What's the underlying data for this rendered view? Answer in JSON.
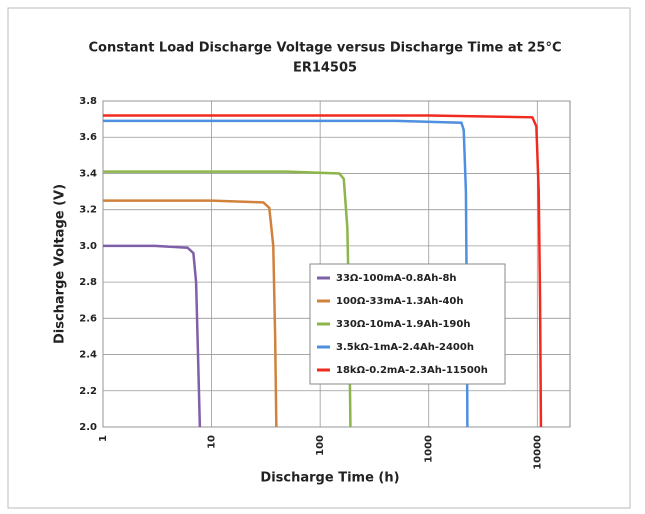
{
  "chart_data": {
    "type": "line",
    "title": "Constant Load Discharge Voltage versus Discharge Time at 25°C",
    "subtitle": "ER14505",
    "x_label": "Discharge  Time (h)",
    "y_label": "Discharge Voltage (V)",
    "xscale": "log",
    "xlim": [
      1,
      20000
    ],
    "xticks": [
      1,
      10,
      100,
      1000,
      10000
    ],
    "ylim": [
      2.0,
      3.8
    ],
    "yticks": [
      {
        "value": 2.0,
        "label": "2.0"
      },
      {
        "value": 2.2,
        "label": "2.2"
      },
      {
        "value": 2.4,
        "label": "2.4"
      },
      {
        "value": 2.6,
        "label": "2.6"
      },
      {
        "value": 2.8,
        "label": "2.8"
      },
      {
        "value": 3.0,
        "label": "3.0"
      },
      {
        "value": 3.2,
        "label": "3.2"
      },
      {
        "value": 3.4,
        "label": "3.4"
      },
      {
        "value": 3.6,
        "label": "3.6"
      },
      {
        "value": 3.8,
        "label": "3.8"
      }
    ],
    "grid": true,
    "legend": "center right",
    "series": [
      {
        "name": "33Ω-100mA-0.8Ah-8h",
        "color": "#7f5fa8",
        "x": [
          1,
          3,
          6,
          6.8,
          7.2,
          7.5,
          7.8
        ],
        "values": [
          3.0,
          3.0,
          2.99,
          2.96,
          2.8,
          2.4,
          2.0
        ]
      },
      {
        "name": "100Ω-33mA-1.3Ah-40h",
        "color": "#d0813b",
        "x": [
          1,
          10,
          30,
          34,
          37,
          38.5,
          39.5
        ],
        "values": [
          3.25,
          3.25,
          3.24,
          3.21,
          3.0,
          2.5,
          2.0
        ]
      },
      {
        "name": "330Ω-10mA-1.9Ah-190h",
        "color": "#8db54a",
        "x": [
          1,
          50,
          150,
          165,
          178,
          185,
          190
        ],
        "values": [
          3.41,
          3.41,
          3.4,
          3.37,
          3.1,
          2.6,
          2.0
        ]
      },
      {
        "name": "3.5kΩ-1mA-2.4Ah-2400h",
        "color": "#4f8fe0",
        "x": [
          1,
          500,
          2000,
          2100,
          2200,
          2240,
          2270
        ],
        "values": [
          3.69,
          3.69,
          3.68,
          3.64,
          3.3,
          2.7,
          2.0
        ]
      },
      {
        "name": "18kΩ-0.2mA-2.3Ah-11500h",
        "color": "#ef2b1f",
        "x": [
          1,
          1000,
          9000,
          9800,
          10300,
          10600,
          10800
        ],
        "values": [
          3.72,
          3.72,
          3.71,
          3.66,
          3.3,
          2.7,
          2.0
        ]
      }
    ]
  }
}
